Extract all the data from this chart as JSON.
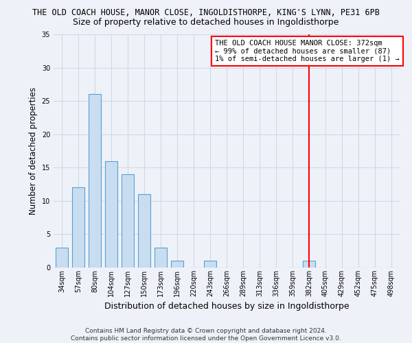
{
  "title": "THE OLD COACH HOUSE, MANOR CLOSE, INGOLDISTHORPE, KING'S LYNN, PE31 6PB",
  "subtitle": "Size of property relative to detached houses in Ingoldisthorpe",
  "xlabel": "Distribution of detached houses by size in Ingoldisthorpe",
  "ylabel": "Number of detached properties",
  "footer": "Contains HM Land Registry data © Crown copyright and database right 2024.\nContains public sector information licensed under the Open Government Licence v3.0.",
  "bin_labels": [
    "34sqm",
    "57sqm",
    "80sqm",
    "104sqm",
    "127sqm",
    "150sqm",
    "173sqm",
    "196sqm",
    "220sqm",
    "243sqm",
    "266sqm",
    "289sqm",
    "313sqm",
    "336sqm",
    "359sqm",
    "382sqm",
    "405sqm",
    "429sqm",
    "452sqm",
    "475sqm",
    "498sqm"
  ],
  "bar_heights": [
    3,
    12,
    26,
    16,
    14,
    11,
    3,
    1,
    0,
    1,
    0,
    0,
    0,
    0,
    0,
    1,
    0,
    0,
    0,
    0,
    0
  ],
  "bar_color": "#c9ddf0",
  "bar_edge_color": "#5a9fd4",
  "grid_color": "#d0d8e8",
  "vline_x_index": 15,
  "vline_color": "red",
  "annotation_text": "THE OLD COACH HOUSE MANOR CLOSE: 372sqm\n← 99% of detached houses are smaller (87)\n1% of semi-detached houses are larger (1) →",
  "annotation_box_color": "white",
  "annotation_box_edge": "red",
  "ylim": [
    0,
    35
  ],
  "yticks": [
    0,
    5,
    10,
    15,
    20,
    25,
    30,
    35
  ],
  "background_color": "#eef2f8",
  "bar_width": 0.75,
  "title_fontsize": 8.5,
  "subtitle_fontsize": 9.0,
  "ylabel_fontsize": 8.5,
  "xlabel_fontsize": 9.0,
  "tick_fontsize": 7.0,
  "annotation_fontsize": 7.5,
  "footer_fontsize": 6.5
}
